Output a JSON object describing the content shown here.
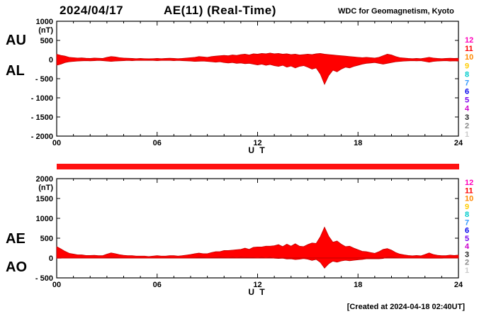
{
  "header": {
    "date": "2024/04/17",
    "title": "AE(11) (Real-Time)",
    "org": "WDC for Geomagnetism, Kyoto"
  },
  "footer": {
    "created": "[Created at 2024-04-18 02:40UT]"
  },
  "coverage_bar_color": "#ff1111",
  "stations": [
    {
      "label": "12",
      "color": "#ff00bb"
    },
    {
      "label": "11",
      "color": "#ff0000"
    },
    {
      "label": "10",
      "color": "#ff8800"
    },
    {
      "label": "9",
      "color": "#ffcc00"
    },
    {
      "label": "8",
      "color": "#00cccc"
    },
    {
      "label": "7",
      "color": "#3399ff"
    },
    {
      "label": "6",
      "color": "#0000ee"
    },
    {
      "label": "5",
      "color": "#7700ee"
    },
    {
      "label": "4",
      "color": "#cc00cc"
    },
    {
      "label": "3",
      "color": "#222222"
    },
    {
      "label": "2",
      "color": "#888888"
    },
    {
      "label": "1",
      "color": "#cccccc"
    }
  ],
  "chart_data": [
    {
      "type": "area",
      "band": true,
      "title": "AU / AL auroral electrojet indices",
      "xlabel": "U T",
      "unit": "(nT)",
      "ylim": [
        -2000,
        1000
      ],
      "yticks": [
        1000,
        500,
        0,
        -500,
        -1000,
        -1500,
        -2000
      ],
      "ytick_labels": [
        "1000",
        "500",
        "0",
        "- 500",
        "- 1000",
        "- 1500",
        "- 2000"
      ],
      "xticks": [
        0,
        6,
        12,
        18,
        24
      ],
      "xtick_labels": [
        "00",
        "06",
        "12",
        "18",
        "24"
      ],
      "x_start": 0,
      "x_step": 0.25,
      "fill_color": "#ff0000",
      "series": [
        {
          "name": "AU",
          "values": [
            140,
            110,
            90,
            60,
            50,
            40,
            45,
            35,
            30,
            40,
            35,
            30,
            60,
            80,
            70,
            50,
            40,
            35,
            30,
            25,
            30,
            25,
            20,
            25,
            30,
            25,
            30,
            35,
            30,
            25,
            30,
            40,
            50,
            60,
            80,
            70,
            60,
            80,
            90,
            100,
            110,
            100,
            120,
            110,
            130,
            140,
            120,
            150,
            140,
            160,
            150,
            170,
            150,
            160,
            140,
            150,
            130,
            140,
            120,
            130,
            140,
            130,
            150,
            160,
            140,
            130,
            120,
            110,
            100,
            90,
            80,
            70,
            60,
            50,
            60,
            50,
            40,
            60,
            100,
            140,
            120,
            80,
            50,
            40,
            30,
            25,
            30,
            25,
            40,
            60,
            40,
            30,
            25,
            30,
            35,
            30,
            35
          ]
        },
        {
          "name": "AL",
          "values": [
            -150,
            -120,
            -80,
            -60,
            -50,
            -40,
            -35,
            -30,
            -35,
            -30,
            -25,
            -30,
            -40,
            -50,
            -40,
            -35,
            -30,
            -25,
            -30,
            -25,
            -20,
            -25,
            -20,
            -25,
            -30,
            -25,
            -20,
            -25,
            -30,
            -25,
            -30,
            -35,
            -40,
            -50,
            -45,
            -40,
            -50,
            -60,
            -70,
            -60,
            -80,
            -90,
            -80,
            -100,
            -90,
            -110,
            -100,
            -120,
            -140,
            -120,
            -150,
            -130,
            -160,
            -180,
            -150,
            -200,
            -170,
            -220,
            -180,
            -160,
            -200,
            -250,
            -220,
            -380,
            -650,
            -420,
            -280,
            -320,
            -250,
            -200,
            -220,
            -180,
            -150,
            -120,
            -100,
            -90,
            -80,
            -100,
            -120,
            -100,
            -80,
            -60,
            -50,
            -40,
            -35,
            -30,
            -35,
            -30,
            -50,
            -70,
            -50,
            -40,
            -35,
            -30,
            -40,
            -35,
            -40
          ]
        }
      ]
    },
    {
      "type": "area",
      "band": false,
      "title": "AE / AO auroral electrojet indices",
      "xlabel": "U T",
      "unit": "(nT)",
      "ylim": [
        -500,
        2000
      ],
      "yticks": [
        2000,
        1500,
        1000,
        500,
        0,
        -500
      ],
      "ytick_labels": [
        "2000",
        "1500",
        "1000",
        "500",
        "0",
        "- 500"
      ],
      "xticks": [
        0,
        6,
        12,
        18,
        24
      ],
      "xtick_labels": [
        "00",
        "06",
        "12",
        "18",
        "24"
      ],
      "x_start": 0,
      "x_step": 0.25,
      "fill_color": "#ff0000",
      "series": [
        {
          "name": "AE",
          "values": [
            290,
            230,
            170,
            120,
            100,
            80,
            80,
            65,
            65,
            70,
            60,
            60,
            100,
            130,
            110,
            85,
            70,
            60,
            60,
            50,
            50,
            50,
            40,
            50,
            60,
            50,
            50,
            60,
            60,
            50,
            60,
            75,
            90,
            110,
            125,
            110,
            110,
            140,
            160,
            160,
            190,
            190,
            200,
            210,
            220,
            250,
            220,
            270,
            280,
            280,
            300,
            300,
            310,
            340,
            290,
            350,
            300,
            360,
            300,
            290,
            340,
            380,
            370,
            540,
            780,
            550,
            400,
            430,
            350,
            290,
            300,
            250,
            210,
            170,
            160,
            140,
            120,
            160,
            220,
            240,
            200,
            140,
            100,
            80,
            65,
            55,
            65,
            55,
            90,
            130,
            90,
            70,
            60,
            60,
            75,
            65,
            75
          ]
        },
        {
          "name": "AO",
          "values": [
            -5,
            -5,
            5,
            0,
            0,
            0,
            5,
            3,
            -3,
            5,
            5,
            0,
            10,
            15,
            15,
            8,
            5,
            5,
            0,
            0,
            5,
            0,
            0,
            0,
            0,
            0,
            5,
            5,
            0,
            0,
            0,
            3,
            5,
            5,
            18,
            15,
            5,
            10,
            10,
            20,
            15,
            5,
            20,
            5,
            20,
            15,
            10,
            15,
            0,
            20,
            0,
            20,
            -5,
            -10,
            -5,
            -25,
            -20,
            -40,
            -30,
            -15,
            -30,
            -60,
            -35,
            -110,
            -255,
            -145,
            -80,
            -105,
            -75,
            -55,
            -70,
            -55,
            -45,
            -35,
            -20,
            -20,
            -20,
            -20,
            -10,
            20,
            20,
            10,
            0,
            0,
            -3,
            -3,
            -3,
            -3,
            -5,
            -5,
            -5,
            -5,
            -5,
            0,
            -3,
            -3,
            -3
          ]
        }
      ]
    }
  ]
}
